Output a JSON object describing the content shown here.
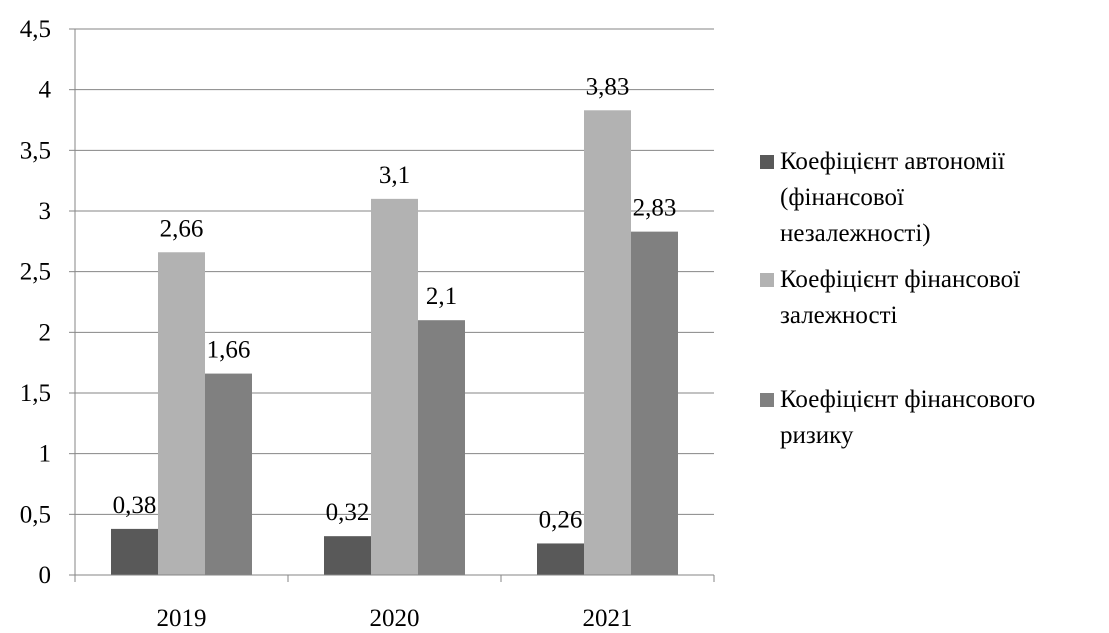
{
  "chart_data": {
    "type": "bar",
    "categories": [
      "2019",
      "2020",
      "2021"
    ],
    "series": [
      {
        "name": "Коефіцієнт автономії (фінансової незалежності)",
        "values": [
          0.38,
          0.32,
          0.26
        ],
        "value_labels": [
          "0,38",
          "0,32",
          "0,26"
        ],
        "color": "#595959",
        "legend_lines": [
          "Коефіцієнт автономії",
          "(фінансової",
          "незалежності)"
        ]
      },
      {
        "name": "Коефіцієнт фінансової залежності",
        "values": [
          2.66,
          3.1,
          3.83
        ],
        "value_labels": [
          "2,66",
          "3,1",
          "3,83"
        ],
        "color": "#b2b2b2",
        "legend_lines": [
          "Коефіцієнт фінансової",
          "залежності"
        ]
      },
      {
        "name": "Коефіцієнт фінансового ризику",
        "values": [
          1.66,
          2.1,
          2.83
        ],
        "value_labels": [
          "1,66",
          "2,1",
          "2,83"
        ],
        "color": "#808080",
        "legend_lines": [
          "Коефіцієнт фінансового",
          "ризику"
        ]
      }
    ],
    "ylim": [
      0,
      4.5
    ],
    "yticks": [
      0,
      0.5,
      1,
      1.5,
      2,
      2.5,
      3,
      3.5,
      4,
      4.5
    ],
    "ytick_labels": [
      "0",
      "0,5",
      "1",
      "1,5",
      "2",
      "2,5",
      "3",
      "3,5",
      "4",
      "4,5"
    ],
    "grid": true,
    "legend_position": "right",
    "gridline_color": "#868686"
  }
}
